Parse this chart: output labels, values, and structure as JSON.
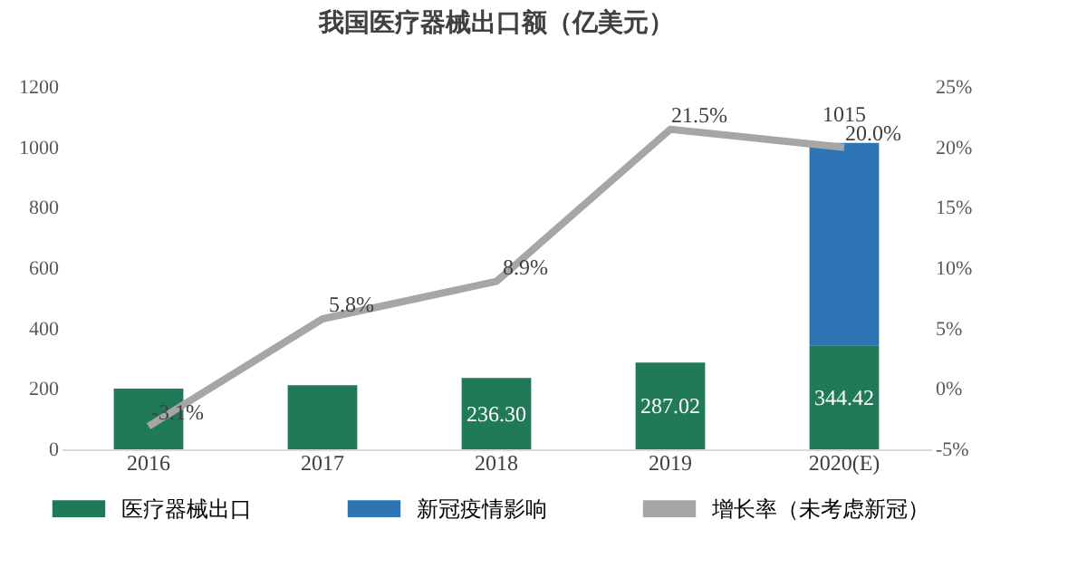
{
  "chart_data": {
    "type": "bar",
    "title": "我国医疗器械出口额（亿美元）",
    "categories": [
      "2016",
      "2017",
      "2018",
      "2019",
      "2020(E)"
    ],
    "stacked": true,
    "series": [
      {
        "name": "医疗器械出口",
        "color": "#217a57",
        "values": [
          201,
          212,
          236.3,
          287.02,
          344.42
        ],
        "value_labels": [
          null,
          null,
          "236.30",
          "287.02",
          "344.42"
        ]
      },
      {
        "name": "新冠疫情影响",
        "color": "#2e75b6",
        "values": [
          null,
          null,
          null,
          null,
          670.58
        ]
      },
      {
        "name": "增长率（未考虑新冠）",
        "type": "line",
        "axis": "y2",
        "color": "#a6a6a6",
        "values": [
          -3.1,
          5.8,
          8.9,
          21.5,
          20.0
        ],
        "value_labels": [
          "-3.1%",
          "5.8%",
          "8.9%",
          "21.5%",
          "20.0%"
        ]
      }
    ],
    "totals": [
      null,
      null,
      null,
      null,
      "1015"
    ],
    "ylim": [
      0,
      1200
    ],
    "yticks": [
      0,
      200,
      400,
      600,
      800,
      1000,
      1200
    ],
    "y2lim": [
      -5,
      25
    ],
    "y2ticks": [
      {
        "value": -5,
        "label": "-5%"
      },
      {
        "value": 0,
        "label": "0%"
      },
      {
        "value": 5,
        "label": "5%"
      },
      {
        "value": 10,
        "label": "10%"
      },
      {
        "value": 15,
        "label": "15%"
      },
      {
        "value": 20,
        "label": "20%"
      },
      {
        "value": 25,
        "label": "25%"
      }
    ],
    "grid": false,
    "legend": "bottom"
  }
}
